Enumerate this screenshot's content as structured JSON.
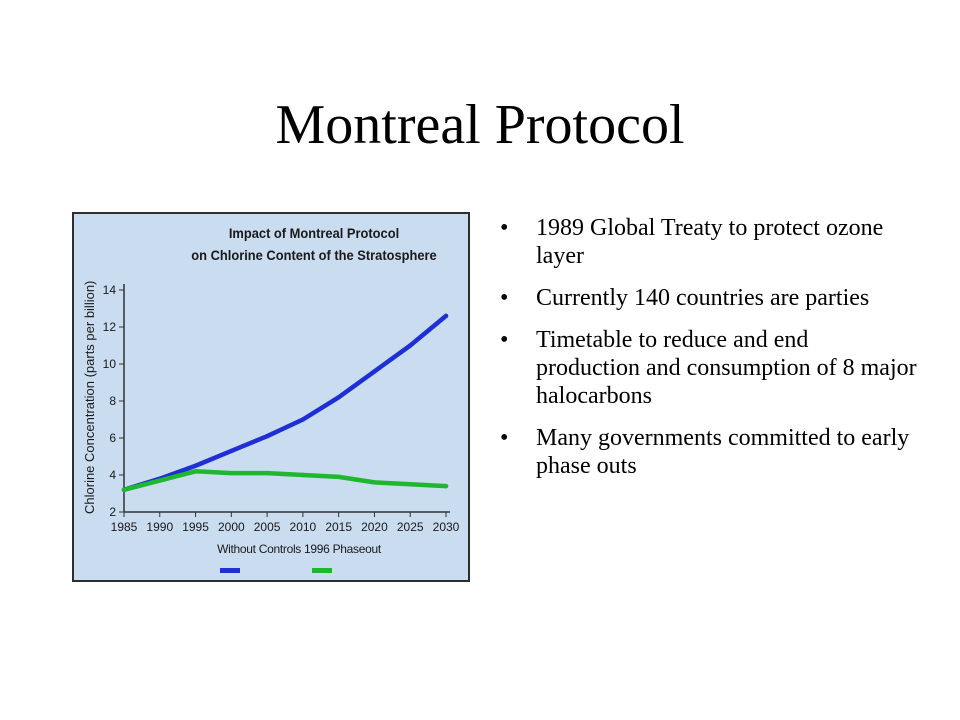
{
  "slide": {
    "title": "Montreal Protocol",
    "bullets": [
      "1989 Global Treaty to protect ozone layer",
      "Currently 140 countries are parties",
      "Timetable to reduce and end production and consumption of 8 major halocarbons",
      "Many governments committed to early phase outs"
    ],
    "bullet_symbol": "•"
  },
  "chart_data": {
    "type": "line",
    "title_line1": "Impact of Montreal Protocol",
    "title_line2": "on Chlorine Content of the Stratosphere",
    "ylabel": "Chlorine Concentration (parts per billion)",
    "legend_text": "Without Controls 1996 Phaseout",
    "xlim": [
      1985,
      2030
    ],
    "ylim": [
      2,
      14
    ],
    "x_ticks": [
      1985,
      1990,
      1995,
      2000,
      2005,
      2010,
      2015,
      2020,
      2025,
      2030
    ],
    "y_ticks": [
      2,
      4,
      6,
      8,
      10,
      12,
      14
    ],
    "background_color": "#c9dcf0",
    "series": [
      {
        "name": "Without Controls",
        "color": "#1f2fd6",
        "x": [
          1985,
          1990,
          1995,
          2000,
          2005,
          2010,
          2015,
          2020,
          2025,
          2030
        ],
        "values": [
          3.2,
          3.8,
          4.5,
          5.3,
          6.1,
          7.0,
          8.2,
          9.6,
          11.0,
          12.6
        ]
      },
      {
        "name": "1996 Phaseout",
        "color": "#1eb82e",
        "x": [
          1985,
          1990,
          1995,
          2000,
          2005,
          2010,
          2015,
          2020,
          2025,
          2030
        ],
        "values": [
          3.2,
          3.7,
          4.2,
          4.1,
          4.1,
          4.0,
          3.9,
          3.6,
          3.5,
          3.4
        ]
      }
    ]
  }
}
